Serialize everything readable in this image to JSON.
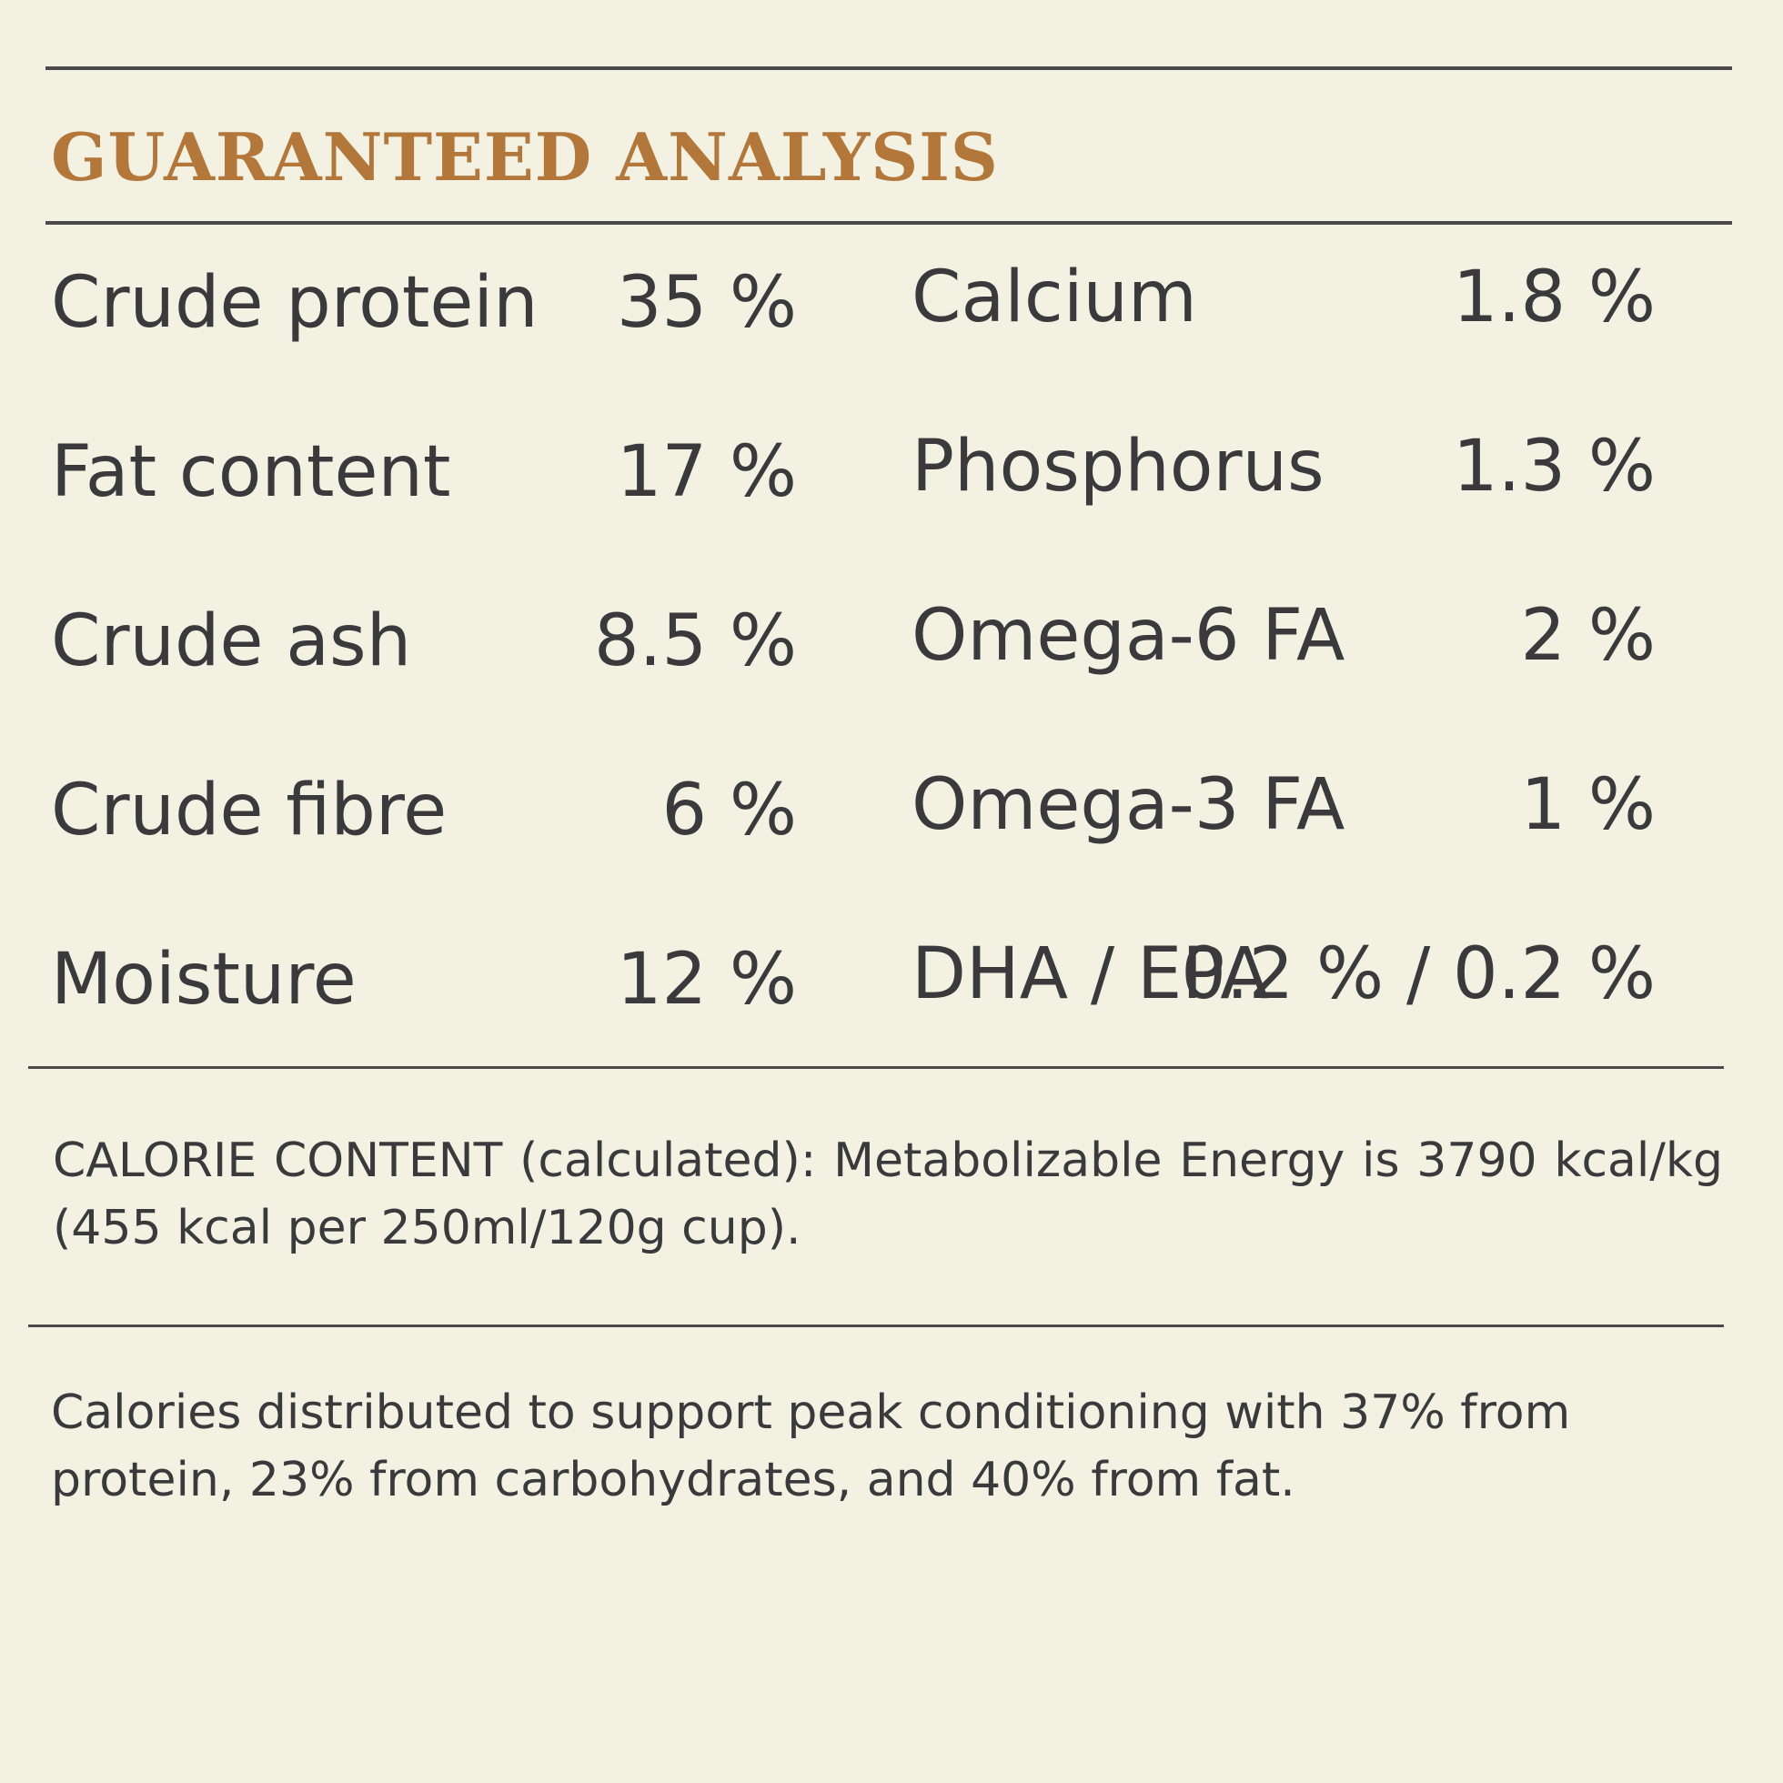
{
  "section": {
    "title": "GUARANTEED ANALYSIS"
  },
  "analysis_left": [
    {
      "label": "Crude protein",
      "value": "35 %"
    },
    {
      "label": "Fat content",
      "value": "17 %"
    },
    {
      "label": "Crude ash",
      "value": "8.5 %"
    },
    {
      "label": "Crude fibre",
      "value": "6 %"
    },
    {
      "label": "Moisture",
      "value": "12 %"
    }
  ],
  "analysis_right": [
    {
      "label": "Calcium",
      "value": "1.8 %"
    },
    {
      "label": "Phosphorus",
      "value": "1.3 %"
    },
    {
      "label": "Omega-6 FA",
      "value": "2 %"
    },
    {
      "label": "Omega-3 FA",
      "value": "1 %"
    },
    {
      "label": "DHA / EPA",
      "value": "0.2 % / 0.2 %"
    }
  ],
  "calorie_content": {
    "text": "CALORIE CONTENT (calculated): Metabolizable Energy is 3790 kcal/kg (455 kcal per 250ml/120g cup)."
  },
  "calorie_distribution": {
    "text": "Calories distributed to support peak conditioning with 37% from protein, 23% from carbohydrates, and 40% from fat."
  },
  "colors": {
    "background": "#f3f2e2",
    "heading": "#b3773a",
    "text": "#3a3a3c",
    "rule": "#4a4a4c"
  }
}
